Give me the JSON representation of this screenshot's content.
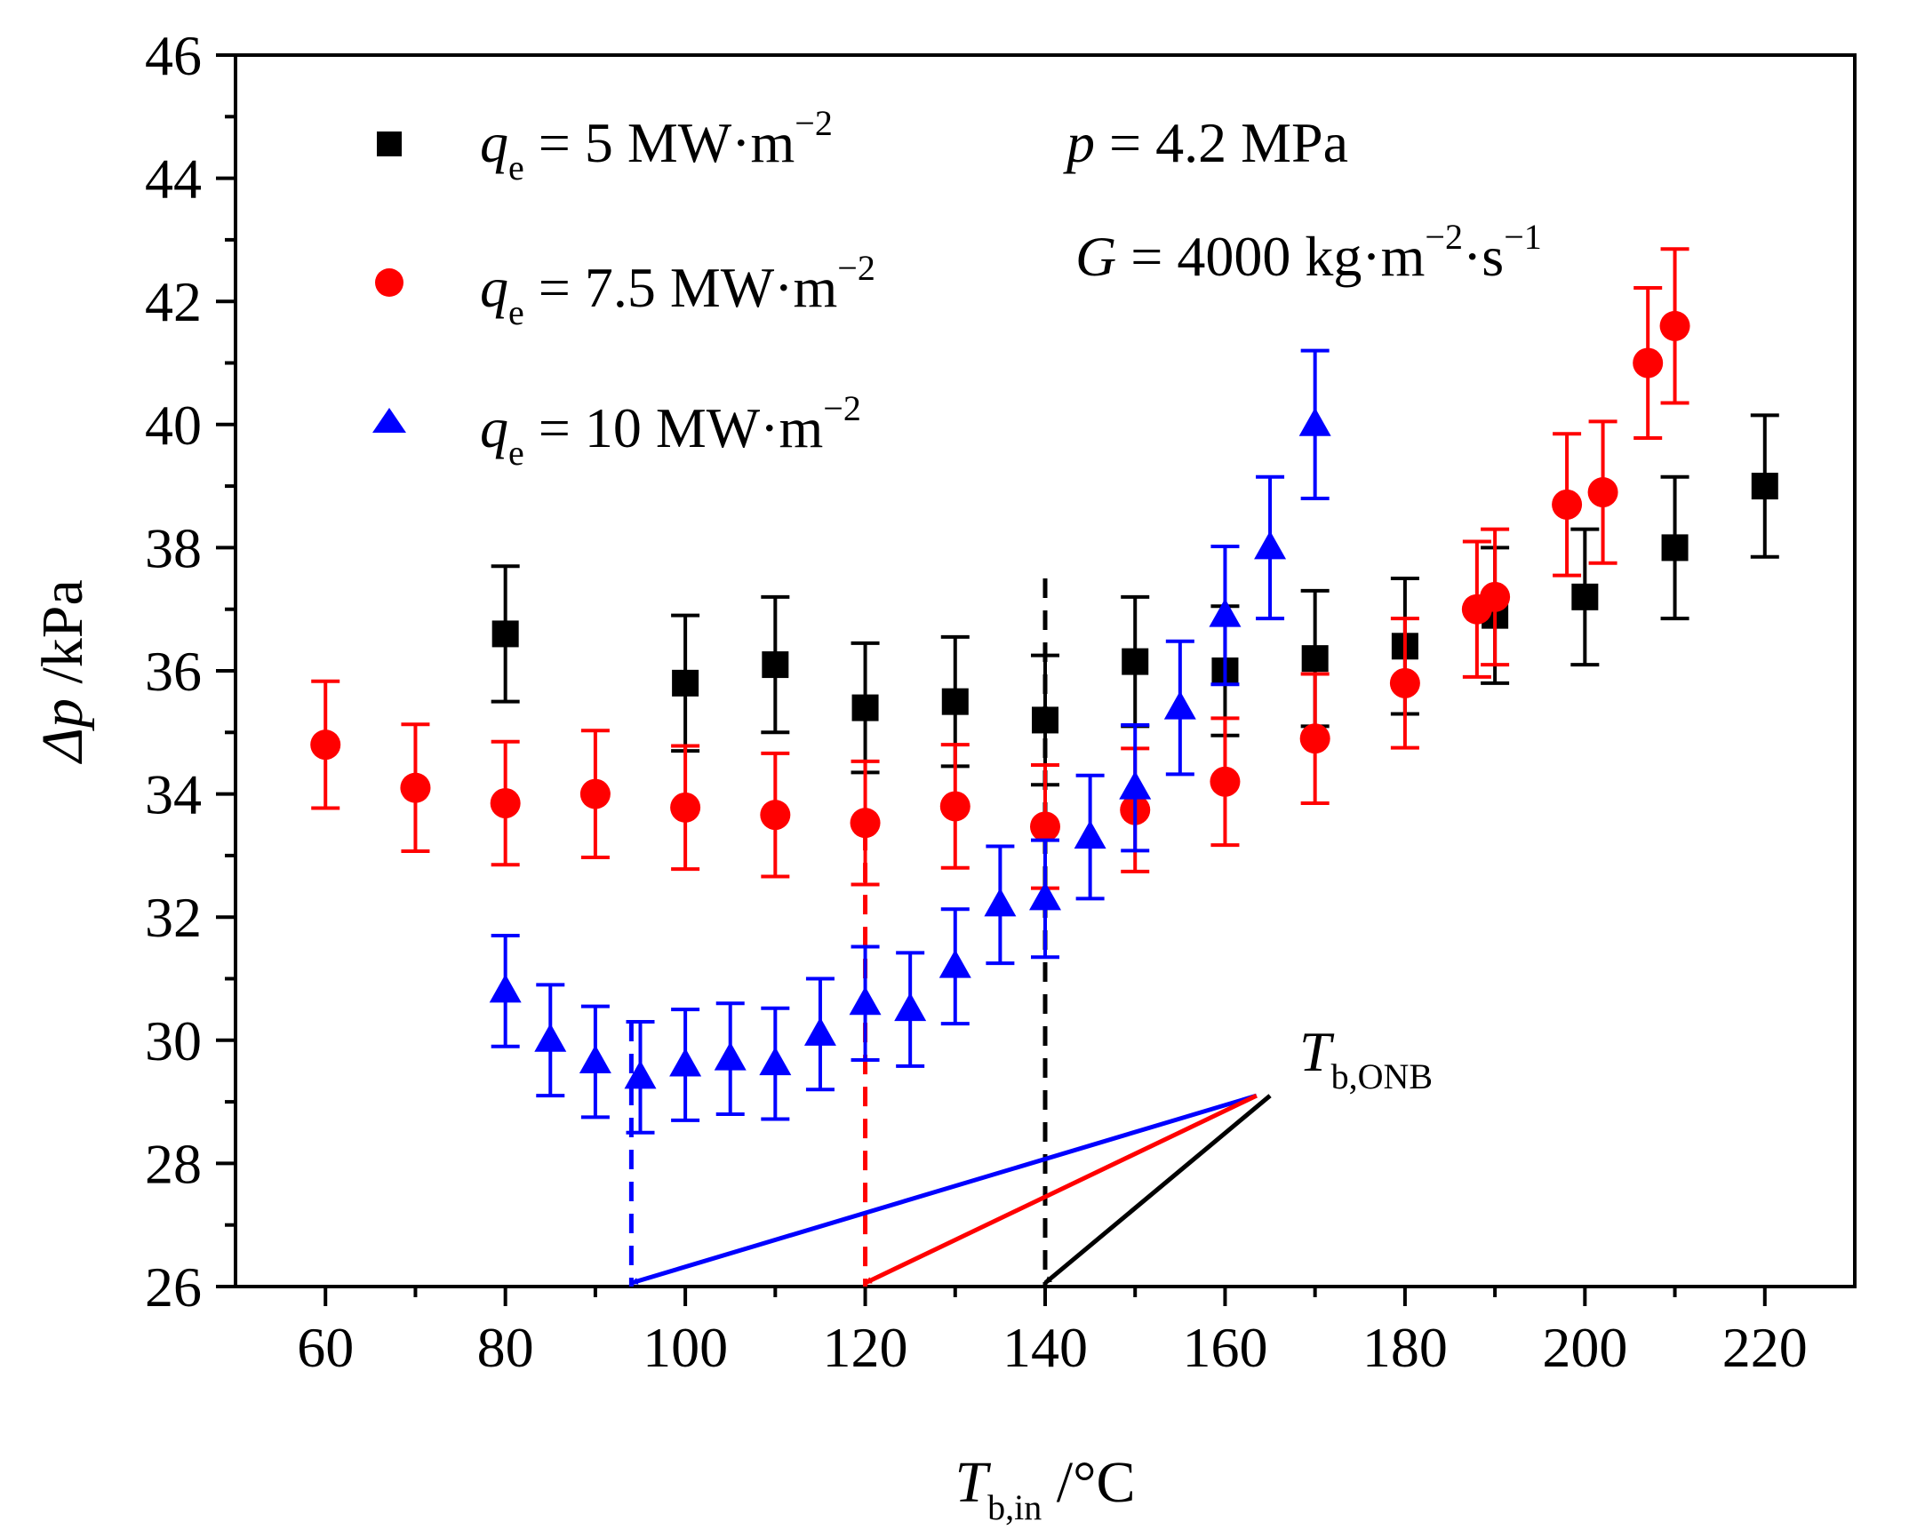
{
  "chart_data": {
    "type": "scatter",
    "title": "",
    "xlabel": {
      "main": "T",
      "sub": "b,in",
      "unit": " /°C"
    },
    "ylabel": {
      "main": "Δp",
      "unit": " /kPa"
    },
    "xlim": [
      50,
      230
    ],
    "ylim": [
      26,
      46
    ],
    "xticks": [
      60,
      80,
      100,
      120,
      140,
      160,
      180,
      200,
      220
    ],
    "yticks": [
      26,
      28,
      30,
      32,
      34,
      36,
      38,
      40,
      42,
      44,
      46
    ],
    "grid": false,
    "legend_position": "top-left",
    "conditions": {
      "line1": {
        "sym": "p",
        "rest": " = 4.2 MPa"
      },
      "line2": {
        "sym": "G",
        "rest": " = 4000 kg·m",
        "sup1": "−2",
        "mid": "·s",
        "sup2": "−1"
      }
    },
    "series": [
      {
        "name": "q_e = 5 MW·m^-2",
        "legend": {
          "sym": "q",
          "sub": "e",
          "rest": " = 5 MW·m",
          "sup": "−2"
        },
        "color": "#000000",
        "marker": "square",
        "x": [
          80,
          100,
          110,
          120,
          130,
          140,
          150,
          160,
          170,
          180,
          190,
          200,
          210,
          220
        ],
        "y": [
          36.6,
          35.8,
          36.1,
          35.4,
          35.5,
          35.2,
          36.15,
          36.0,
          36.2,
          36.4,
          36.9,
          37.2,
          38.0,
          39.0
        ],
        "err": [
          1.1,
          1.1,
          1.1,
          1.05,
          1.05,
          1.05,
          1.05,
          1.05,
          1.1,
          1.1,
          1.1,
          1.1,
          1.15,
          1.15
        ]
      },
      {
        "name": "q_e = 7.5 MW·m^-2",
        "legend": {
          "sym": "q",
          "sub": "e",
          "rest": " = 7.5 MW·m",
          "sup": "−2"
        },
        "color": "#ff0000",
        "marker": "circle",
        "x": [
          60,
          70,
          80,
          90,
          100,
          110,
          120,
          130,
          140,
          150,
          160,
          170,
          180,
          188,
          190,
          198,
          202,
          207,
          210
        ],
        "y": [
          34.8,
          34.1,
          33.85,
          34.0,
          33.78,
          33.66,
          33.53,
          33.8,
          33.47,
          33.74,
          34.2,
          34.9,
          35.8,
          37.0,
          37.2,
          38.7,
          38.9,
          41.0,
          41.6
        ],
        "err": [
          1.03,
          1.03,
          1.0,
          1.03,
          1.0,
          1.0,
          1.0,
          1.0,
          1.0,
          1.0,
          1.03,
          1.05,
          1.05,
          1.1,
          1.1,
          1.15,
          1.15,
          1.22,
          1.25
        ]
      },
      {
        "name": "q_e = 10 MW·m^-2",
        "legend": {
          "sym": "q",
          "sub": "e",
          "rest": " = 10 MW·m",
          "sup": "−2"
        },
        "color": "#0000ff",
        "marker": "triangle",
        "x": [
          80,
          85,
          90,
          95,
          100,
          105,
          110,
          115,
          120,
          125,
          130,
          135,
          140,
          145,
          150,
          155,
          160,
          165,
          170
        ],
        "y": [
          30.8,
          30.0,
          29.65,
          29.4,
          29.6,
          29.7,
          29.62,
          30.1,
          30.6,
          30.5,
          31.2,
          32.2,
          32.3,
          33.3,
          34.1,
          35.4,
          36.9,
          38.0,
          40.0
        ],
        "err": [
          0.9,
          0.9,
          0.9,
          0.9,
          0.9,
          0.9,
          0.9,
          0.9,
          0.92,
          0.92,
          0.93,
          0.95,
          0.95,
          1.0,
          1.02,
          1.08,
          1.12,
          1.15,
          1.2
        ]
      }
    ],
    "annotation": {
      "label": {
        "sym": "T",
        "sub": "b,ONB"
      },
      "anchor": [
        165,
        29.1
      ],
      "onb_lines": [
        {
          "x": 140,
          "y_top": 37.5,
          "color": "#000000"
        },
        {
          "x": 120,
          "y_top": 33.4,
          "color": "#ff0000"
        },
        {
          "x": 94,
          "y_top": 30.3,
          "color": "#0000ff"
        }
      ],
      "arrows": [
        {
          "from": [
            163.5,
            29.1
          ],
          "to": [
            94,
            26.0
          ],
          "color": "#0000ff"
        },
        {
          "from": [
            163.5,
            29.1
          ],
          "to": [
            120,
            26.0
          ],
          "color": "#ff0000"
        },
        {
          "from": [
            165,
            29.1
          ],
          "to": [
            140,
            26.0
          ],
          "color": "#000000"
        }
      ]
    }
  }
}
